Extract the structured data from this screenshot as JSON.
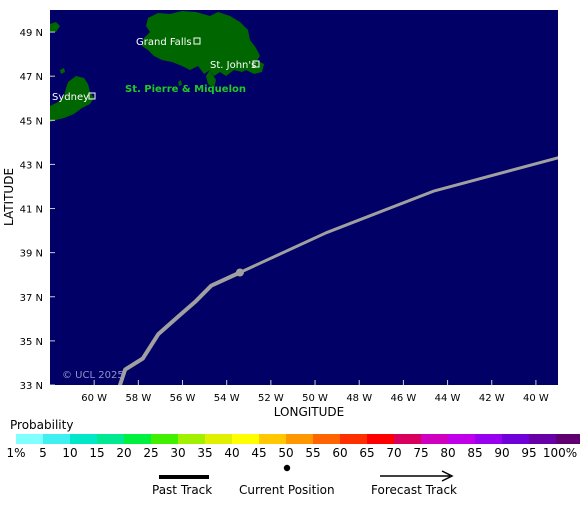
{
  "map": {
    "x_axis_title": "LONGITUDE",
    "y_axis_title": "LATITUDE",
    "lon_ticks": [
      "60 W",
      "58 W",
      "56 W",
      "54 W",
      "52 W",
      "50 W",
      "48 W",
      "46 W",
      "44 W",
      "42 W",
      "40 W"
    ],
    "lat_ticks": [
      "49 N",
      "47 N",
      "45 N",
      "43 N",
      "41 N",
      "39 N",
      "37 N",
      "35 N",
      "33 N"
    ],
    "places": [
      {
        "name": "Grand Falls",
        "lon": -55.8,
        "lat": 49.0
      },
      {
        "name": "St. John's",
        "lon": -52.7,
        "lat": 47.6
      },
      {
        "name": "Sydney",
        "lon": -60.2,
        "lat": 46.1
      }
    ],
    "territory_label": "St. Pierre & Miquelon",
    "copyright": "© UCL 2025",
    "colors": {
      "ocean": "#000066",
      "land": "#006600",
      "track": "#a0a0a0",
      "grid": "#cccccc"
    }
  },
  "chart_data": {
    "type": "line",
    "xlabel": "LONGITUDE",
    "ylabel": "LATITUDE",
    "xlim": [
      -62.0,
      -39.0
    ],
    "ylim": [
      33.0,
      50.0
    ],
    "series": [
      {
        "values": [
          {
            "lon": -58.9,
            "lat": 32.8
          },
          {
            "lon": -58.6,
            "lat": 33.7
          },
          {
            "lon": -57.8,
            "lat": 34.2
          },
          {
            "lon": -57.1,
            "lat": 35.3
          },
          {
            "lon": -56.2,
            "lat": 36.1
          },
          {
            "lon": -55.4,
            "lat": 36.8
          },
          {
            "lon": -54.7,
            "lat": 37.5
          },
          {
            "lon": -53.4,
            "lat": 38.1
          },
          {
            "lon": -49.5,
            "lat": 39.9
          },
          {
            "lon": -44.6,
            "lat": 41.8
          },
          {
            "lon": -39.0,
            "lat": 43.3
          }
        ]
      }
    ],
    "current_position": {
      "lon": -53.4,
      "lat": 38.1
    }
  },
  "probability": {
    "title": "Probability",
    "labels": [
      "1%",
      "5",
      "10",
      "15",
      "20",
      "25",
      "30",
      "35",
      "40",
      "45",
      "50",
      "55",
      "60",
      "65",
      "70",
      "75",
      "80",
      "85",
      "90",
      "95",
      "100%"
    ],
    "colors": [
      "#80ffff",
      "#40f0f0",
      "#00e8c8",
      "#00e890",
      "#00f040",
      "#40f000",
      "#a0f000",
      "#e0f000",
      "#ffff00",
      "#ffc800",
      "#ff9800",
      "#ff6400",
      "#ff3000",
      "#ff0000",
      "#d8005c",
      "#d000c0",
      "#c000e8",
      "#9800f0",
      "#7000d8",
      "#6800a8",
      "#600070"
    ]
  },
  "legend": {
    "past_track": "Past Track",
    "current_position": "Current Position",
    "forecast_track": "Forecast Track"
  }
}
